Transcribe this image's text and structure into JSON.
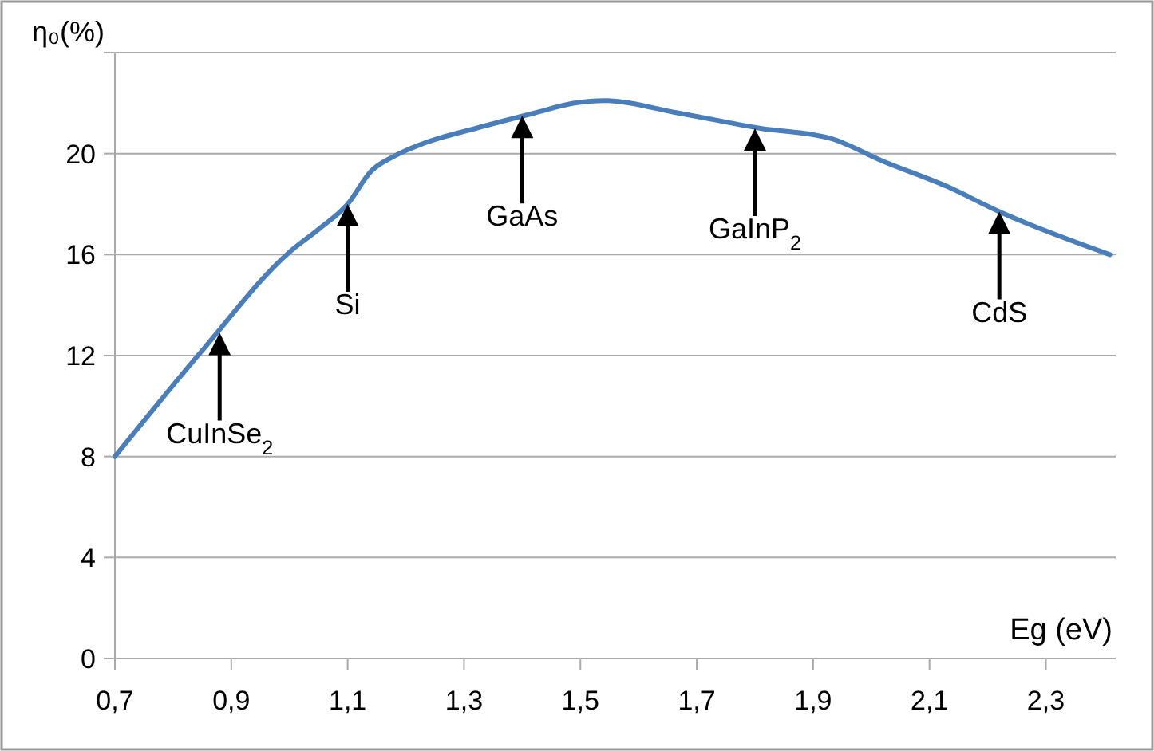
{
  "chart_data": {
    "type": "line",
    "xlabel": "Eg (eV)",
    "ylabel": "η₀(%)",
    "x": [
      0.7,
      0.85,
      1.0,
      1.05,
      1.1,
      1.14,
      1.18,
      1.23,
      1.32,
      1.42,
      1.49,
      1.54,
      1.67,
      1.81,
      1.93,
      2.02,
      2.13,
      2.22,
      2.41
    ],
    "series": [
      {
        "color": "#4a7ebb",
        "values": [
          8.0,
          12.2,
          16.1,
          17.0,
          18.0,
          19.3,
          19.9,
          20.4,
          21.0,
          21.6,
          22.0,
          22.1,
          21.6,
          21.0,
          20.6,
          19.7,
          18.7,
          17.7,
          16.0
        ]
      }
    ],
    "xlim": [
      0.7,
      2.42
    ],
    "ylim": [
      0,
      24
    ],
    "xticks": [
      {
        "value": 0.7,
        "label": "0,7"
      },
      {
        "value": 0.9,
        "label": "0,9"
      },
      {
        "value": 1.1,
        "label": "1,1"
      },
      {
        "value": 1.3,
        "label": "1,3"
      },
      {
        "value": 1.5,
        "label": "1,5"
      },
      {
        "value": 1.7,
        "label": "1,7"
      },
      {
        "value": 1.9,
        "label": "1,9"
      },
      {
        "value": 2.1,
        "label": "2,1"
      },
      {
        "value": 2.3,
        "label": "2,3"
      }
    ],
    "yticks": [
      0,
      4,
      8,
      12,
      16,
      20,
      {
        "value": 24,
        "label": null
      }
    ],
    "grid": "y",
    "marker": "none",
    "line_style": "solid",
    "annotations": [
      {
        "text": "CuInSe$_{2}$",
        "x": 0.88,
        "y": 12.9
      },
      {
        "text": "Si",
        "x": 1.1,
        "y": 18.0
      },
      {
        "text": "GaAs",
        "x": 1.4,
        "y": 21.5
      },
      {
        "text": "GaInP$_{2}$",
        "x": 1.8,
        "y": 21.0
      },
      {
        "text": "CdS",
        "x": 2.22,
        "y": 17.7
      }
    ]
  }
}
